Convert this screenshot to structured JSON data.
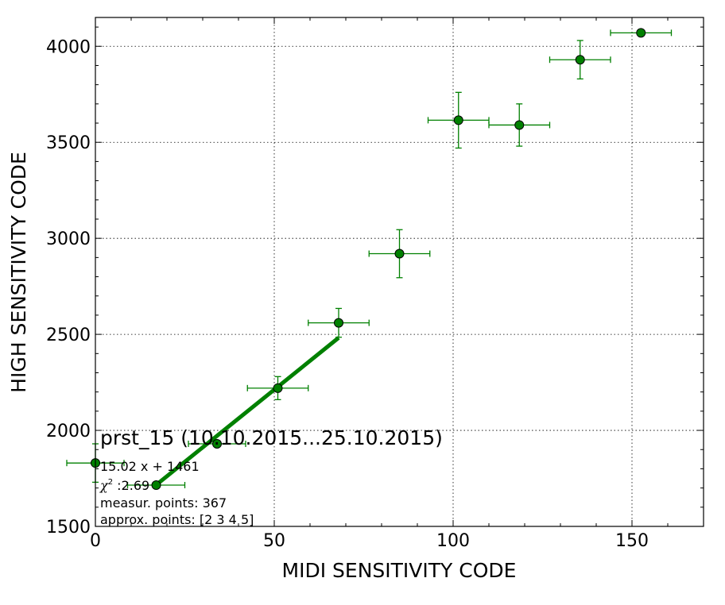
{
  "colors": {
    "series": "#008000",
    "marker_fill": "#008000",
    "marker_edge": "#000000",
    "fit_line": "#008000",
    "grid": "#000000"
  },
  "chart_data": {
    "type": "scatter",
    "xlabel": "MIDI SENSITIVITY CODE",
    "ylabel": "HIGH SENSITIVITY CODE",
    "xlim": [
      0,
      170
    ],
    "ylim": [
      1500,
      4150
    ],
    "x_ticks": [
      0,
      50,
      100,
      150
    ],
    "y_ticks": [
      1500,
      2000,
      2500,
      3000,
      3500,
      4000
    ],
    "grid": true,
    "series": [
      {
        "points": [
          {
            "x": 0,
            "y": 1830,
            "xerr": 8,
            "yerr": 100
          },
          {
            "x": 17,
            "y": 1715,
            "xerr": 8,
            "yerr": 0
          },
          {
            "x": 34,
            "y": 1930,
            "xerr": 8,
            "yerr": 0
          },
          {
            "x": 51,
            "y": 2220,
            "xerr": 8.5,
            "yerr": 60
          },
          {
            "x": 68,
            "y": 2560,
            "xerr": 8.5,
            "yerr": 75
          },
          {
            "x": 85,
            "y": 2920,
            "xerr": 8.5,
            "yerr": 125
          },
          {
            "x": 101.5,
            "y": 3615,
            "xerr": 8.5,
            "yerr": 145
          },
          {
            "x": 118.5,
            "y": 3590,
            "xerr": 8.5,
            "yerr": 110
          },
          {
            "x": 135.5,
            "y": 3930,
            "xerr": 8.5,
            "yerr": 100
          },
          {
            "x": 152.5,
            "y": 4070,
            "xerr": 8.5,
            "yerr": 0
          }
        ]
      }
    ],
    "fit_line": {
      "slope": 15.02,
      "intercept": 1461,
      "x_range": [
        17,
        68
      ]
    },
    "annotations": {
      "title": "prst_15 (10.10.2015...25.10.2015)",
      "equation": "15.02 x + 1461",
      "chi_symbol": "χ",
      "chi_power": "2",
      "chi_value": " :2.69",
      "measur_points": "measur. points: 367",
      "approx_points": "approx. points: [2 3 4 5]"
    }
  }
}
